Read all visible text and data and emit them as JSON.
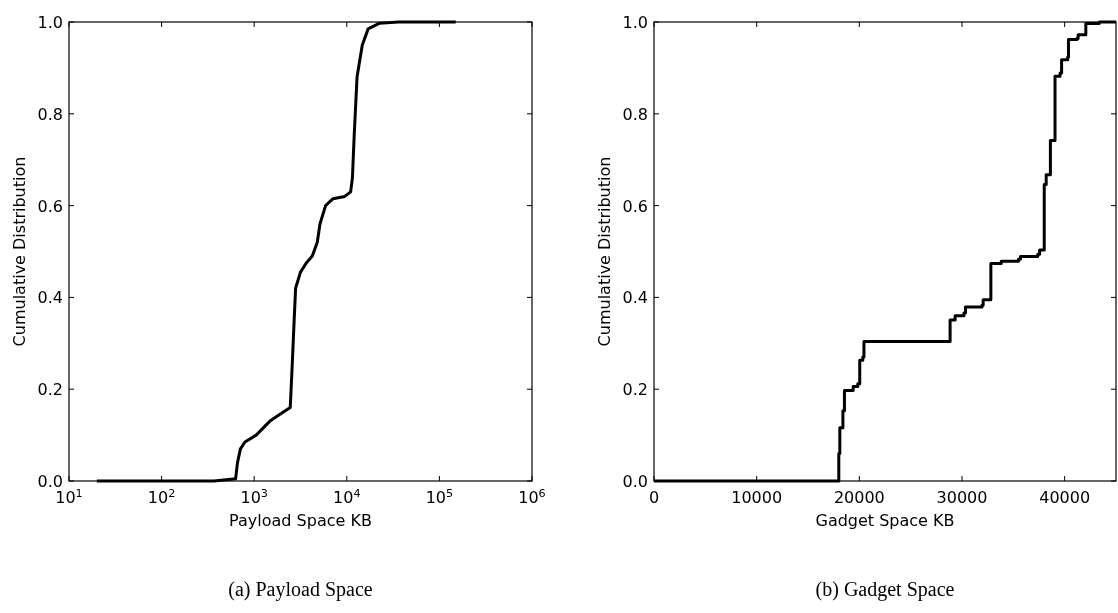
{
  "chart_data": [
    {
      "type": "line",
      "title": "(a) Payload Space",
      "xlabel": "Payload Space KB",
      "ylabel": "Cumulative Distribution",
      "log": "x",
      "xlim": [
        10,
        1000000
      ],
      "ylim": [
        0,
        1
      ],
      "xticks": [
        {
          "value": 10,
          "label": "10$^{1}$"
        },
        {
          "value": 100,
          "label": "10$^{2}$"
        },
        {
          "value": 1000,
          "label": "10$^{3}$"
        },
        {
          "value": 10000,
          "label": "10$^{4}$"
        },
        {
          "value": 100000,
          "label": "10$^{5}$"
        },
        {
          "value": 1000000,
          "label": "10$^{6}$"
        }
      ],
      "yticks": [
        {
          "value": 0,
          "label": "0.0"
        },
        {
          "value": 0.2,
          "label": "0.2"
        },
        {
          "value": 0.4,
          "label": "0.4"
        },
        {
          "value": 0.6,
          "label": "0.6"
        },
        {
          "value": 0.8,
          "label": "0.8"
        },
        {
          "value": 1,
          "label": "1.0"
        }
      ],
      "series": [
        {
          "color": "#000000",
          "x": [
            20,
            370,
            630,
            660,
            710,
            795,
            1050,
            1470,
            1880,
            2450,
            2570,
            2700,
            2800,
            3160,
            3650,
            4240,
            4800,
            5130,
            5900,
            7100,
            9500,
            11000,
            11500,
            12000,
            12900,
            14700,
            17000,
            22400,
            36000,
            150000
          ],
          "values": [
            0,
            0,
            0.005,
            0.04,
            0.07,
            0.085,
            0.1,
            0.13,
            0.145,
            0.16,
            0.25,
            0.35,
            0.42,
            0.455,
            0.475,
            0.49,
            0.52,
            0.56,
            0.6,
            0.615,
            0.62,
            0.63,
            0.66,
            0.75,
            0.88,
            0.95,
            0.985,
            0.997,
            1,
            1
          ]
        }
      ]
    },
    {
      "type": "step",
      "title": "(b) Gadget Space",
      "xlabel": "Gadget Space KB",
      "ylabel": "Cumulative Distribution",
      "xlim": [
        0,
        45000
      ],
      "ylim": [
        0,
        1
      ],
      "xticks": [
        0,
        10000,
        20000,
        30000,
        40000
      ],
      "yticks": [
        {
          "value": 0,
          "label": "0.0"
        },
        {
          "value": 0.2,
          "label": "0.2"
        },
        {
          "value": 0.4,
          "label": "0.4"
        },
        {
          "value": 0.6,
          "label": "0.6"
        },
        {
          "value": 0.8,
          "label": "0.8"
        },
        {
          "value": 1,
          "label": "1.0"
        }
      ],
      "series": [
        {
          "color": "#000000",
          "x": [
            0,
            18000,
            18100,
            18400,
            18550,
            19400,
            19850,
            20040,
            20340,
            20450,
            28840,
            29330,
            30190,
            30340,
            31950,
            32060,
            32810,
            33820,
            35500,
            35690,
            37380,
            37560,
            38010,
            38200,
            38610,
            39060,
            39550,
            39700,
            40300,
            40370,
            41200,
            41310,
            42060,
            43370,
            45000
          ],
          "values": [
            0,
            0.06,
            0.116,
            0.153,
            0.197,
            0.206,
            0.212,
            0.263,
            0.27,
            0.304,
            0.351,
            0.36,
            0.366,
            0.379,
            0.383,
            0.395,
            0.474,
            0.479,
            0.483,
            0.489,
            0.494,
            0.503,
            0.646,
            0.667,
            0.742,
            0.882,
            0.889,
            0.918,
            0.924,
            0.962,
            0.964,
            0.972,
            0.997,
            1,
            1
          ]
        }
      ]
    }
  ]
}
